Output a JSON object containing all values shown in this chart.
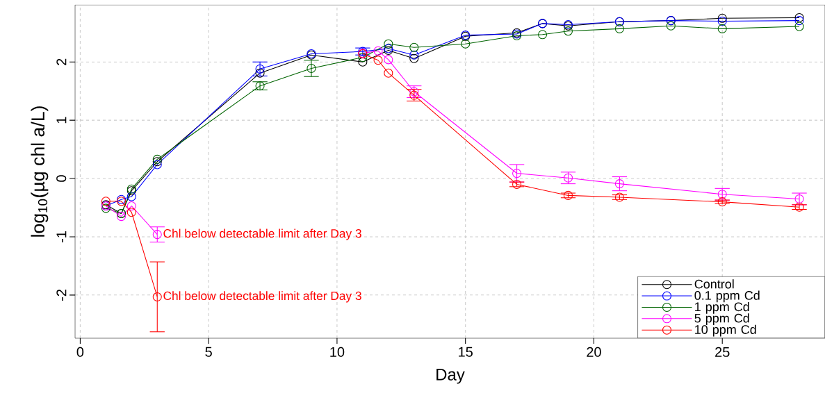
{
  "chart_data": {
    "type": "line",
    "xlabel": "Day",
    "ylabel": "log$_{10}$(µg chl a/L)",
    "xlim": [
      -0.2,
      29
    ],
    "ylim": [
      -2.74,
      2.98
    ],
    "xticks": [
      0,
      5,
      10,
      15,
      20,
      25
    ],
    "yticks": [
      -2,
      -1,
      0,
      1,
      2
    ],
    "grid": true,
    "legend": "bottom right",
    "marker": "circle",
    "line_style": "solid",
    "series": [
      {
        "name": "Control",
        "color": "#000000",
        "x": [
          1,
          1.6,
          2,
          3,
          7,
          9,
          11,
          12,
          13,
          15,
          17,
          18,
          19,
          21,
          23,
          25,
          28
        ],
        "values": [
          -0.45,
          -0.6,
          -0.21,
          0.29,
          1.81,
          2.12,
          2.0,
          2.2,
          2.06,
          2.44,
          2.5,
          2.66,
          2.62,
          2.69,
          2.71,
          2.75,
          2.76
        ],
        "errors": [
          null,
          null,
          null,
          null,
          null,
          null,
          null,
          null,
          null,
          null,
          null,
          null,
          null,
          null,
          null,
          null,
          null
        ]
      },
      {
        "name": "0.1 ppm Cd",
        "color": "#0000ff",
        "x": [
          1,
          1.6,
          2,
          3,
          7,
          9,
          11,
          12,
          13,
          15,
          17,
          18,
          19,
          21,
          23,
          25,
          28
        ],
        "values": [
          -0.47,
          -0.36,
          -0.31,
          0.24,
          1.88,
          2.14,
          2.18,
          2.23,
          2.12,
          2.46,
          2.48,
          2.66,
          2.64,
          2.69,
          2.71,
          2.7,
          2.71
        ],
        "errors": [
          null,
          null,
          null,
          null,
          0.12,
          null,
          0.06,
          null,
          null,
          null,
          null,
          null,
          null,
          null,
          null,
          null,
          null
        ]
      },
      {
        "name": "1 ppm Cd",
        "color": "#006400",
        "x": [
          1,
          1.6,
          2,
          3,
          7,
          9,
          11,
          12,
          13,
          15,
          17,
          18,
          19,
          21,
          23,
          25,
          28
        ],
        "values": [
          -0.51,
          -0.6,
          -0.18,
          0.33,
          1.59,
          1.89,
          2.08,
          2.31,
          2.25,
          2.31,
          2.45,
          2.47,
          2.53,
          2.57,
          2.62,
          2.57,
          2.61
        ],
        "errors": [
          null,
          null,
          null,
          null,
          0.07,
          0.14,
          null,
          null,
          null,
          null,
          null,
          null,
          null,
          null,
          null,
          null,
          null
        ]
      },
      {
        "name": "5 ppm Cd",
        "color": "#ff00ff",
        "x": [
          1,
          1.6,
          2,
          3
        ],
        "values": [
          -0.47,
          -0.65,
          -0.47,
          -0.96
        ],
        "errors": [
          null,
          null,
          null,
          0.13
        ]
      },
      {
        "name": "10 ppm Cd",
        "color": "#ff0000",
        "x": [
          1,
          1.6,
          2,
          3
        ],
        "values": [
          -0.39,
          -0.39,
          -0.58,
          -2.03
        ],
        "errors": [
          null,
          null,
          null,
          0.6
        ]
      },
      {
        "color": "#ff00ff",
        "x": [
          11,
          11.6,
          12,
          13,
          17,
          19,
          21,
          25,
          28
        ],
        "values": [
          2.15,
          2.19,
          2.04,
          1.49,
          0.09,
          0.01,
          -0.09,
          -0.27,
          -0.35
        ],
        "errors": [
          null,
          null,
          null,
          0.1,
          0.15,
          0.1,
          0.12,
          0.1,
          0.1
        ]
      },
      {
        "color": "#ff0000",
        "x": [
          11,
          11.6,
          12,
          13,
          17,
          19,
          21,
          25,
          28
        ],
        "values": [
          2.14,
          2.03,
          1.81,
          1.43,
          -0.1,
          -0.29,
          -0.32,
          -0.4,
          -0.49
        ],
        "errors": [
          null,
          null,
          null,
          0.1,
          0.04,
          0.04,
          0.04,
          0.03,
          0.04
        ]
      }
    ],
    "annotations": [
      {
        "text": "Chl below detectable limit after Day 3",
        "x": 3,
        "y": -0.96
      },
      {
        "text": "Chl below detectable limit after Day 3",
        "x": 3,
        "y": -2.03
      }
    ]
  }
}
